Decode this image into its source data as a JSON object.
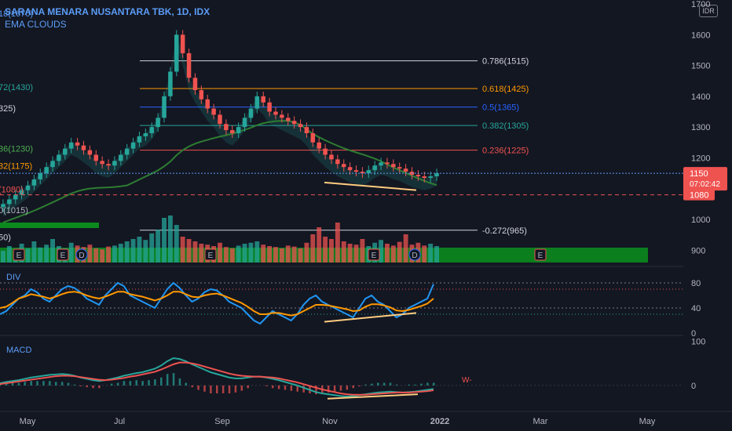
{
  "header": {
    "title": "SARANA MENARA NUSANTARA TBK, 1D, IDX",
    "indicator": "EMA CLOUDS",
    "currency": "IDR"
  },
  "left_labels": [
    {
      "text": "18(1670)",
      "y": 1670,
      "color": "#5b9cf6"
    },
    {
      "text": "72(1430)",
      "y": 1430,
      "color": "#26a69a"
    },
    {
      "text": "325)",
      "y": 1362,
      "color": "#d1d4dc"
    },
    {
      "text": "36(1230)",
      "y": 1230,
      "color": "#4caf50"
    },
    {
      "text": "32(1175)",
      "y": 1175,
      "color": "#ff9800"
    },
    {
      "text": "(1080)",
      "y": 1098,
      "color": "#ef5350"
    },
    {
      "text": "0(1015)",
      "y": 1030,
      "color": "#b2b5be"
    },
    {
      "text": "50)",
      "y": 943,
      "color": "#d1d4dc"
    }
  ],
  "chart_data": [
    {
      "type": "candlestick",
      "x_ticks": [
        "May",
        "Jul",
        "Sep",
        "Nov",
        "2022",
        "Mar",
        "May"
      ],
      "y_ticks": [
        900,
        1000,
        1100,
        1200,
        1300,
        1400,
        1500,
        1600,
        1700
      ],
      "ylim": [
        860,
        1700
      ],
      "last_price": 1150,
      "countdown": "07:02:42",
      "support_label": 1080,
      "fib_levels": [
        {
          "label": "0.786(1515)",
          "value": 1515,
          "color": "#d1d4dc"
        },
        {
          "label": "0.618(1425)",
          "value": 1425,
          "color": "#ff9800"
        },
        {
          "label": "0.5(1365)",
          "value": 1365,
          "color": "#2962ff"
        },
        {
          "label": "0.382(1305)",
          "value": 1305,
          "color": "#26a69a"
        },
        {
          "label": "0.236(1225)",
          "value": 1225,
          "color": "#ef5350"
        },
        {
          "label": "-0.272(965)",
          "value": 965,
          "color": "#d1d4dc"
        }
      ],
      "close_series": [
        1050,
        1065,
        1080,
        1095,
        1110,
        1130,
        1150,
        1170,
        1190,
        1210,
        1230,
        1250,
        1240,
        1225,
        1210,
        1190,
        1180,
        1175,
        1190,
        1210,
        1230,
        1250,
        1270,
        1280,
        1300,
        1330,
        1400,
        1480,
        1600,
        1540,
        1460,
        1420,
        1390,
        1360,
        1340,
        1310,
        1290,
        1280,
        1300,
        1330,
        1360,
        1400,
        1380,
        1350,
        1340,
        1330,
        1320,
        1310,
        1300,
        1280,
        1250,
        1230,
        1210,
        1195,
        1180,
        1170,
        1160,
        1155,
        1150,
        1160,
        1175,
        1185,
        1180,
        1170,
        1165,
        1155,
        1145,
        1140,
        1135,
        1140,
        1150
      ],
      "volume_series": [
        0.25,
        0.35,
        0.28,
        0.4,
        0.3,
        0.45,
        0.32,
        0.38,
        0.5,
        0.35,
        0.3,
        0.42,
        0.36,
        0.33,
        0.38,
        0.3,
        0.28,
        0.34,
        0.36,
        0.4,
        0.45,
        0.5,
        0.55,
        0.48,
        0.62,
        0.7,
        0.95,
        1.0,
        0.8,
        0.55,
        0.5,
        0.45,
        0.4,
        0.38,
        0.35,
        0.42,
        0.33,
        0.3,
        0.36,
        0.4,
        0.42,
        0.45,
        0.38,
        0.35,
        0.33,
        0.3,
        0.36,
        0.34,
        0.3,
        0.42,
        0.6,
        0.75,
        0.55,
        0.5,
        0.85,
        0.45,
        0.4,
        0.38,
        0.5,
        0.35,
        0.42,
        0.48,
        0.4,
        0.36,
        0.44,
        0.6,
        0.38,
        0.42,
        0.36,
        0.4,
        0.35
      ]
    },
    {
      "type": "line",
      "label": "DIV",
      "y_ticks": [
        0,
        40,
        80
      ],
      "ylim": [
        0,
        100
      ],
      "series": [
        {
          "color": "#2196f3",
          "values": [
            30,
            35,
            45,
            55,
            60,
            70,
            65,
            55,
            50,
            60,
            70,
            75,
            72,
            65,
            55,
            50,
            45,
            60,
            70,
            80,
            75,
            60,
            55,
            50,
            45,
            40,
            55,
            70,
            80,
            72,
            60,
            50,
            55,
            65,
            70,
            68,
            60,
            50,
            45,
            40,
            30,
            20,
            15,
            25,
            35,
            30,
            25,
            20,
            30,
            45,
            55,
            60,
            50,
            45,
            40,
            35,
            30,
            25,
            40,
            55,
            60,
            50,
            45,
            35,
            25,
            30,
            40,
            45,
            50,
            55,
            78
          ]
        },
        {
          "color": "#ff9800",
          "values": [
            40,
            42,
            48,
            55,
            58,
            62,
            60,
            58,
            55,
            58,
            62,
            65,
            66,
            64,
            60,
            57,
            55,
            58,
            62,
            66,
            66,
            62,
            60,
            58,
            55,
            52,
            55,
            60,
            66,
            66,
            62,
            58,
            57,
            60,
            62,
            63,
            60,
            56,
            52,
            48,
            42,
            35,
            30,
            30,
            32,
            32,
            30,
            28,
            30,
            35,
            40,
            45,
            45,
            44,
            42,
            40,
            38,
            35,
            36,
            42,
            46,
            46,
            44,
            41,
            36,
            35,
            37,
            40,
            43,
            47,
            55
          ]
        }
      ]
    },
    {
      "type": "line",
      "label": "MACD",
      "y_ticks": [
        0,
        100
      ],
      "ylim": [
        -50,
        110
      ],
      "series": [
        {
          "color": "#26a69a",
          "values": [
            5,
            8,
            10,
            12,
            15,
            18,
            20,
            22,
            24,
            25,
            26,
            25,
            22,
            18,
            15,
            12,
            10,
            12,
            15,
            18,
            22,
            25,
            28,
            30,
            34,
            38,
            45,
            55,
            62,
            60,
            55,
            48,
            42,
            36,
            30,
            26,
            22,
            18,
            16,
            16,
            18,
            20,
            20,
            18,
            15,
            12,
            8,
            4,
            0,
            -5,
            -10,
            -15,
            -18,
            -20,
            -22,
            -24,
            -25,
            -24,
            -22,
            -20,
            -18,
            -16,
            -15,
            -14,
            -15,
            -16,
            -15,
            -14,
            -12,
            -10,
            -8
          ]
        },
        {
          "color": "#ef5350",
          "values": [
            3,
            5,
            7,
            9,
            11,
            13,
            15,
            17,
            19,
            21,
            22,
            22,
            21,
            19,
            17,
            15,
            13,
            12,
            13,
            15,
            17,
            20,
            22,
            25,
            28,
            31,
            36,
            42,
            48,
            52,
            52,
            50,
            47,
            43,
            39,
            35,
            31,
            27,
            24,
            22,
            21,
            20,
            20,
            19,
            18,
            16,
            13,
            10,
            7,
            3,
            -1,
            -5,
            -9,
            -12,
            -15,
            -18,
            -20,
            -21,
            -21,
            -21,
            -20,
            -19,
            -18,
            -17,
            -16,
            -16,
            -16,
            -15,
            -14,
            -13,
            -11
          ]
        }
      ]
    }
  ]
}
